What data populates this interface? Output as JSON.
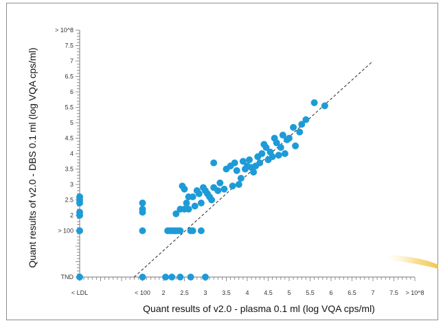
{
  "chart_data": {
    "type": "scatter",
    "title": "",
    "xlabel": "Quant results of v2.0 - plasma 0.1 ml (log VQA cps/ml)",
    "ylabel": "Quant results of v2.0 - DBS 0.1 ml (log VQA cps/ml)",
    "x_ticks": [
      "< LDL",
      "< 100",
      "2",
      "2.5",
      "3",
      "3.5",
      "4",
      "4.5",
      "5",
      "5.5",
      "6",
      "6.5",
      "7",
      "7.5",
      "> 10^8"
    ],
    "y_ticks": [
      "TND",
      "> 100",
      "2",
      "2.5",
      "3",
      "3.5",
      "4",
      "4.5",
      "5",
      "5.5",
      "6",
      "6.5",
      "7",
      "7.5",
      "> 10^8"
    ],
    "x_tick_values": [
      0,
      1.5,
      2,
      2.5,
      3,
      3.5,
      4,
      4.5,
      5,
      5.5,
      6,
      6.5,
      7,
      7.5,
      8
    ],
    "y_tick_values": [
      0,
      1.5,
      2,
      2.5,
      3,
      3.5,
      4,
      4.5,
      5,
      5.5,
      6,
      6.5,
      7,
      7.5,
      8
    ],
    "xlim": [
      0,
      8
    ],
    "ylim": [
      0,
      8
    ],
    "reference_line": {
      "style": "dashed",
      "from": [
        1.3,
        0
      ],
      "to": [
        7,
        7
      ]
    },
    "marker_color": "#1e9bd7",
    "grid": false,
    "points": [
      [
        0,
        0
      ],
      [
        1.5,
        0
      ],
      [
        2.05,
        0
      ],
      [
        2.2,
        0
      ],
      [
        2.4,
        0
      ],
      [
        2.65,
        0
      ],
      [
        3.0,
        0
      ],
      [
        0,
        1.5
      ],
      [
        1.5,
        1.5
      ],
      [
        2.1,
        1.5
      ],
      [
        2.15,
        1.5
      ],
      [
        2.2,
        1.5
      ],
      [
        2.25,
        1.5
      ],
      [
        2.3,
        1.5
      ],
      [
        2.35,
        1.5
      ],
      [
        2.4,
        1.5
      ],
      [
        2.65,
        1.5
      ],
      [
        2.7,
        1.5
      ],
      [
        2.9,
        1.5
      ],
      [
        0,
        2.0
      ],
      [
        0,
        2.1
      ],
      [
        0,
        2.4
      ],
      [
        0,
        2.5
      ],
      [
        0,
        2.6
      ],
      [
        1.5,
        2.1
      ],
      [
        1.5,
        2.2
      ],
      [
        1.5,
        2.4
      ],
      [
        2.3,
        2.05
      ],
      [
        2.4,
        2.2
      ],
      [
        2.5,
        2.2
      ],
      [
        2.55,
        2.4
      ],
      [
        2.6,
        2.2
      ],
      [
        2.75,
        2.3
      ],
      [
        2.45,
        2.95
      ],
      [
        2.5,
        2.85
      ],
      [
        2.6,
        2.6
      ],
      [
        2.7,
        2.6
      ],
      [
        2.8,
        2.8
      ],
      [
        2.85,
        2.7
      ],
      [
        2.9,
        2.4
      ],
      [
        2.95,
        2.9
      ],
      [
        3.0,
        2.8
      ],
      [
        3.05,
        2.7
      ],
      [
        3.1,
        2.6
      ],
      [
        3.15,
        2.5
      ],
      [
        3.2,
        2.9
      ],
      [
        3.2,
        3.7
      ],
      [
        3.3,
        2.8
      ],
      [
        3.35,
        3.05
      ],
      [
        3.45,
        2.85
      ],
      [
        3.5,
        3.5
      ],
      [
        3.6,
        3.6
      ],
      [
        3.65,
        2.95
      ],
      [
        3.7,
        3.7
      ],
      [
        3.75,
        3.45
      ],
      [
        3.8,
        3.0
      ],
      [
        3.85,
        3.2
      ],
      [
        3.9,
        3.75
      ],
      [
        3.95,
        3.5
      ],
      [
        4.0,
        3.6
      ],
      [
        4.05,
        3.8
      ],
      [
        4.1,
        3.55
      ],
      [
        4.15,
        3.4
      ],
      [
        4.2,
        3.6
      ],
      [
        4.25,
        3.9
      ],
      [
        4.3,
        3.7
      ],
      [
        4.35,
        4.0
      ],
      [
        4.4,
        4.3
      ],
      [
        4.45,
        4.2
      ],
      [
        4.5,
        3.8
      ],
      [
        4.55,
        4.05
      ],
      [
        4.6,
        3.9
      ],
      [
        4.65,
        4.5
      ],
      [
        4.7,
        4.35
      ],
      [
        4.75,
        3.95
      ],
      [
        4.8,
        4.2
      ],
      [
        4.85,
        4.6
      ],
      [
        4.9,
        4.0
      ],
      [
        4.95,
        4.45
      ],
      [
        5.0,
        4.5
      ],
      [
        5.1,
        4.85
      ],
      [
        5.15,
        4.25
      ],
      [
        5.25,
        4.7
      ],
      [
        5.3,
        4.95
      ],
      [
        5.4,
        5.1
      ],
      [
        5.6,
        5.65
      ],
      [
        5.85,
        5.55
      ]
    ]
  }
}
